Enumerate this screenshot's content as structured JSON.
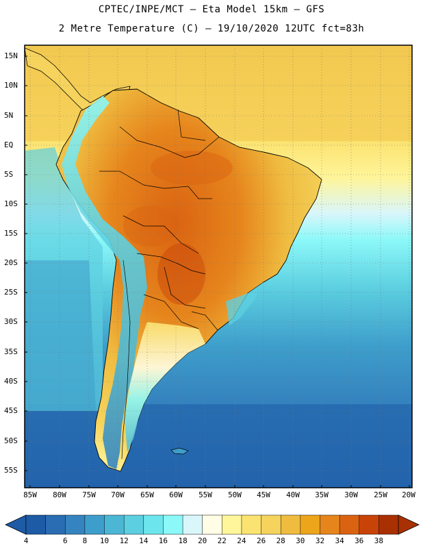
{
  "header": {
    "line1": "CPTEC/INPE/MCT –  Eta Model 15km – GFS",
    "line2": "2 Metre Temperature (C) – 19/10/2020 12UTC fct=83h"
  },
  "lat_labels": [
    "15N",
    "10N",
    "5N",
    "EQ",
    "5S",
    "10S",
    "15S",
    "20S",
    "25S",
    "30S",
    "35S",
    "40S",
    "45S",
    "50S",
    "55S"
  ],
  "lon_labels": [
    "85W",
    "80W",
    "75W",
    "70W",
    "65W",
    "60W",
    "55W",
    "50W",
    "45W",
    "40W",
    "35W",
    "30W",
    "25W",
    "20W"
  ],
  "colorbar": {
    "labels": [
      "4",
      "6",
      "8",
      "10",
      "12",
      "14",
      "16",
      "18",
      "20",
      "22",
      "24",
      "26",
      "28",
      "30",
      "32",
      "34",
      "36",
      "38"
    ],
    "colors": [
      "#1e5ba6",
      "#2a6db3",
      "#3584bf",
      "#3e9ecb",
      "#4cb7d5",
      "#5ccfe0",
      "#6ce6ec",
      "#8cf8f8",
      "#d9f6fb",
      "#fffde6",
      "#fff59a",
      "#fbe371",
      "#f5d35d",
      "#efbc40",
      "#eda51c",
      "#e6851c",
      "#da6312",
      "#c84308",
      "#a93003"
    ]
  },
  "colors": {
    "ocean_tropical": "#f5d35d",
    "ocean_mid": "#6ce6ec",
    "ocean_south": "#2a6db3",
    "land_hot": "#e6851c",
    "andes": "#4cb7d5"
  }
}
